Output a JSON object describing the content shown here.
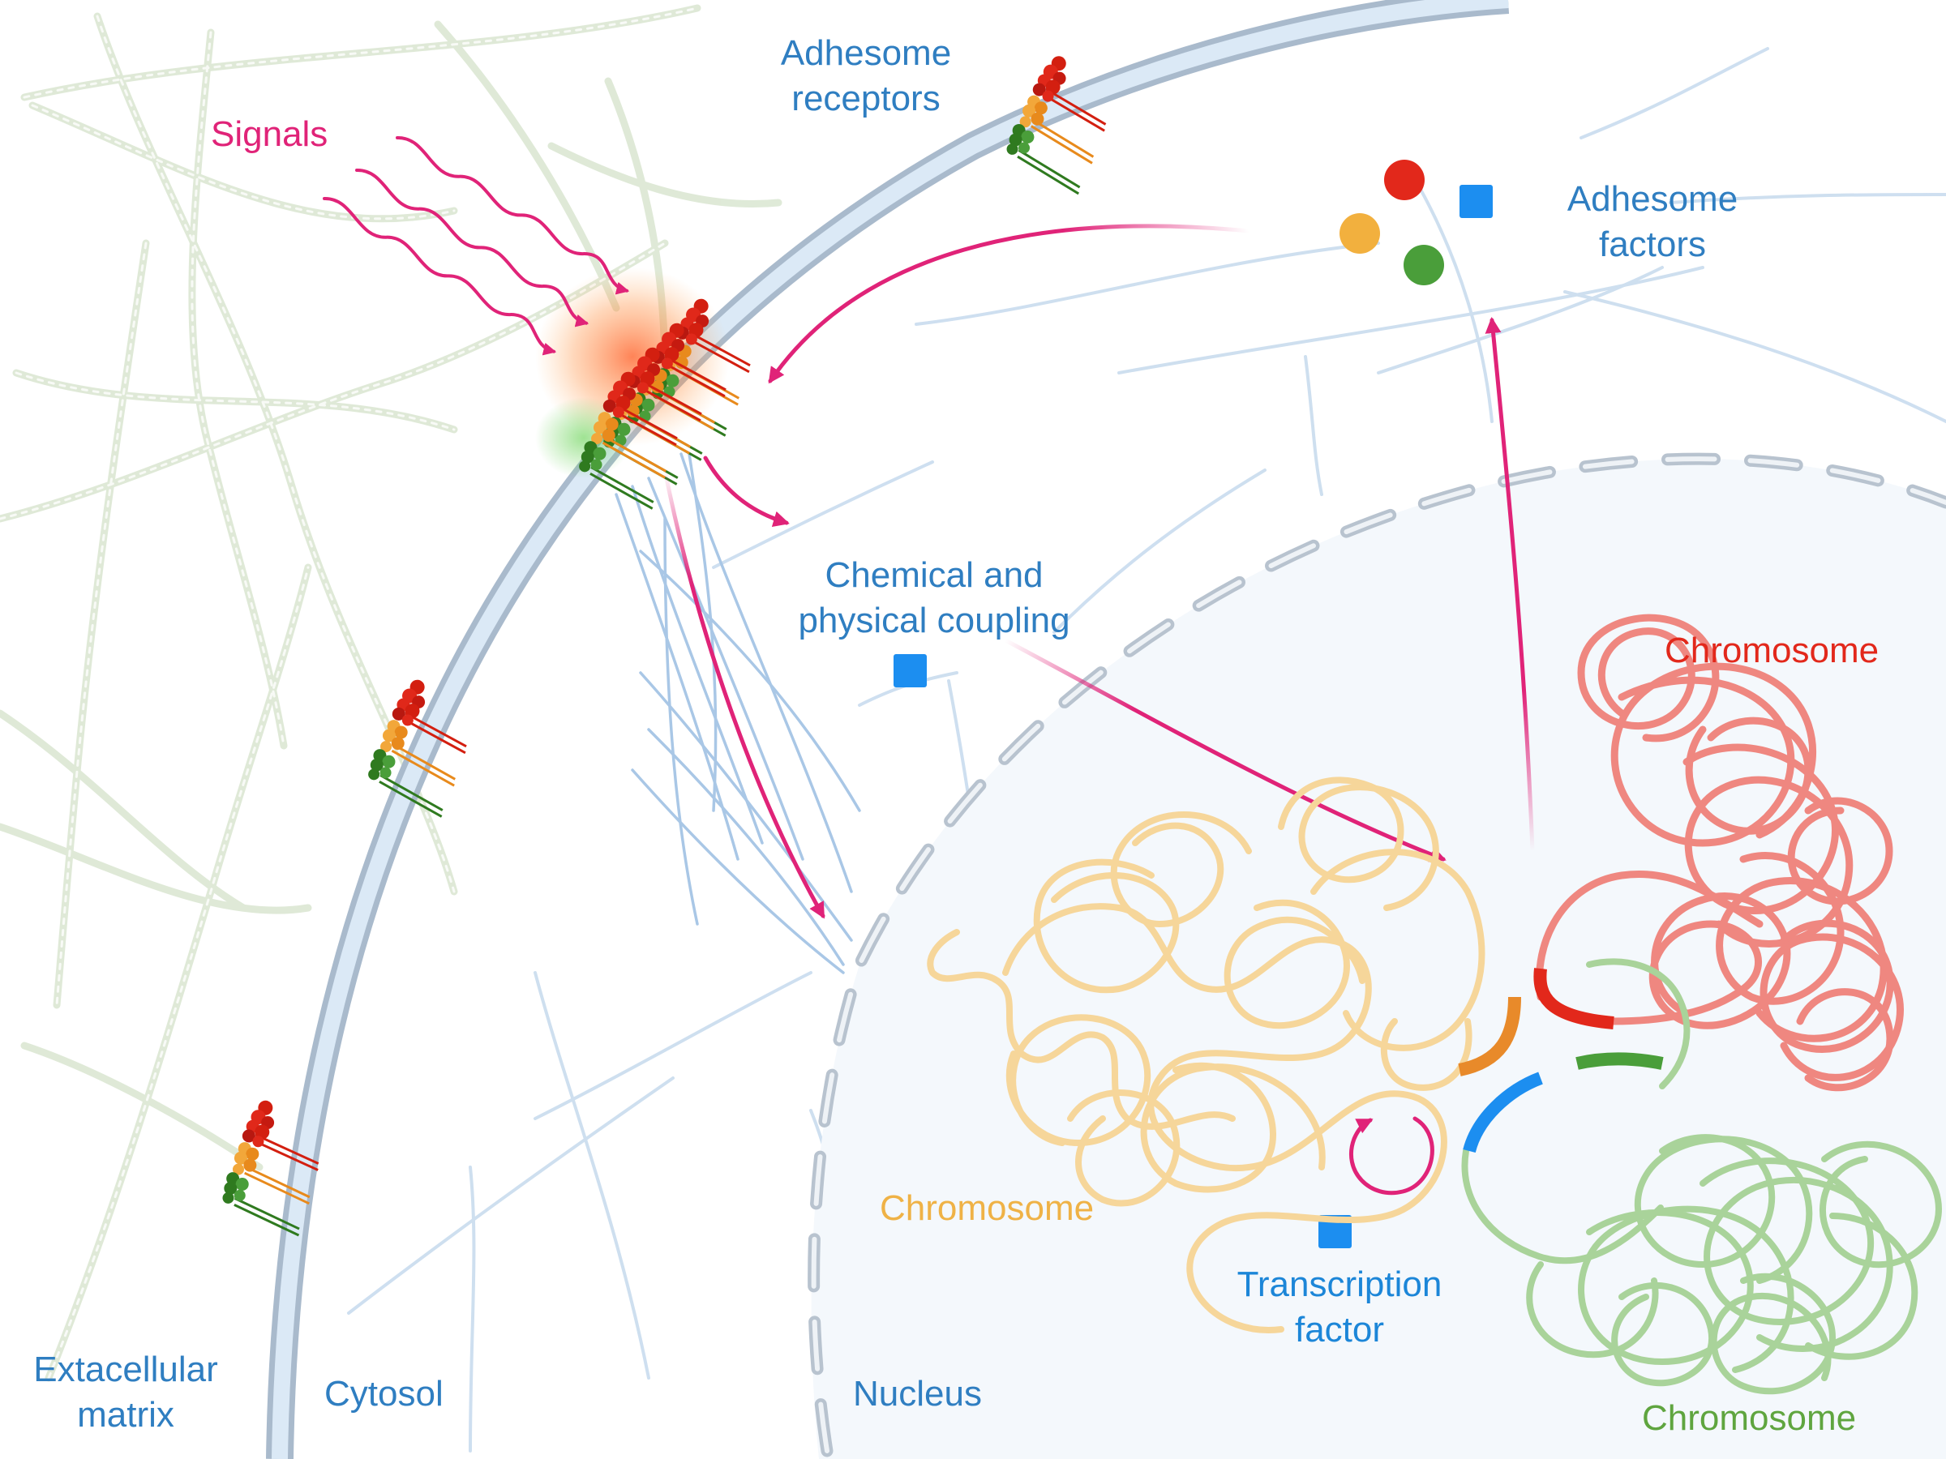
{
  "labels": {
    "signals": "Signals",
    "adhesome_receptors": [
      "Adhesome",
      "receptors"
    ],
    "adhesome_factors": [
      "Adhesome",
      "factors"
    ],
    "coupling": [
      "Chemical and",
      "physical coupling"
    ],
    "chromosome_red": "Chromosome",
    "chromosome_orange": "Chromosome",
    "chromosome_green": "Chromosome",
    "transcription_factor": [
      "Transcription",
      "factor"
    ],
    "extracellular_matrix": [
      "Extacellular",
      "matrix"
    ],
    "cytosol": "Cytosol",
    "nucleus": "Nucleus"
  },
  "colors": {
    "label_blue": "#2f7ec1",
    "signal_pink": "#e02378",
    "factor_red": "#e2281b",
    "factor_orange": "#f2b03e",
    "factor_green": "#4a9e3a",
    "factor_blue": "#1c8ef0",
    "chromosome_orange": "#f6d69a",
    "chromosome_red": "#ef8780",
    "chromosome_green": "#a9d39a",
    "membrane": "#b9cfe4",
    "nucleus_fill": "#f4f8fc"
  },
  "icons": [
    "adhesome-receptor-cluster-icon",
    "adhesome-factor-dot-icon",
    "transcription-factor-square-icon",
    "signal-wave-icon"
  ]
}
